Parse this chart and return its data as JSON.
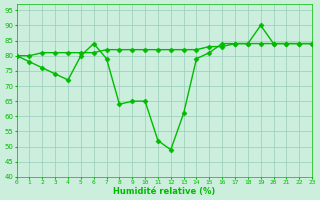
{
  "line1_x": [
    0,
    1,
    2,
    3,
    4,
    5,
    6,
    7,
    8,
    9,
    10,
    11,
    12,
    13,
    14,
    15,
    16,
    17,
    18,
    19,
    20,
    21,
    22,
    23
  ],
  "line1_y": [
    80,
    80,
    81,
    81,
    81,
    81,
    81,
    82,
    82,
    82,
    82,
    82,
    82,
    82,
    82,
    83,
    83,
    84,
    84,
    84,
    84,
    84,
    84,
    84
  ],
  "line2_x": [
    0,
    1,
    2,
    3,
    4,
    5,
    6,
    7,
    8,
    9,
    10,
    11,
    12,
    13,
    14,
    15,
    16,
    17,
    18,
    19,
    20,
    21,
    22,
    23
  ],
  "line2_y": [
    80,
    78,
    76,
    74,
    72,
    80,
    84,
    79,
    64,
    65,
    65,
    52,
    49,
    61,
    79,
    81,
    84,
    84,
    84,
    90,
    84,
    84,
    84,
    84
  ],
  "xlabel": "Humidité relative (%)",
  "xlim": [
    0,
    23
  ],
  "ylim": [
    40,
    97
  ],
  "yticks": [
    40,
    45,
    50,
    55,
    60,
    65,
    70,
    75,
    80,
    85,
    90,
    95
  ],
  "xtick_labels": [
    "0",
    "1",
    "2",
    "3",
    "4",
    "5",
    "6",
    "7",
    "8",
    "9",
    "10",
    "11",
    "12",
    "13",
    "14",
    "15",
    "16",
    "17",
    "18",
    "19",
    "20",
    "21",
    "22",
    "23"
  ],
  "line_color": "#00BB00",
  "bg_color": "#CCEEDD",
  "grid_color": "#99CCBB",
  "marker": "D",
  "marker_size": 2.5,
  "line_width": 1.0
}
